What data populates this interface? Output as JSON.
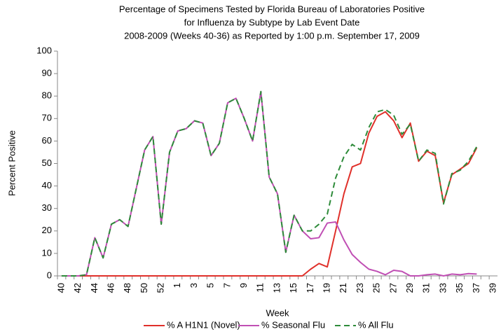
{
  "chart_data": {
    "type": "line",
    "title": [
      "Percentage of Specimens Tested by Florida Bureau of Laboratories Positive",
      "for Influenza by Subtype by Lab Event Date",
      "2008-2009 (Weeks 40-36) as Reported by 1:00 p.m. September 17, 2009"
    ],
    "xlabel": "Week",
    "ylabel": "Percent Positive",
    "categories": [
      "40",
      null,
      "42",
      null,
      "44",
      null,
      "46",
      null,
      "48",
      null,
      "50",
      null,
      "52",
      null,
      "1",
      null,
      "3",
      null,
      "5",
      null,
      "7",
      null,
      "9",
      null,
      "11",
      null,
      "13",
      null,
      "15",
      null,
      "17",
      null,
      "19",
      null,
      "21",
      null,
      "23",
      null,
      "25",
      null,
      "27",
      null,
      "29",
      null,
      "31",
      null,
      "33",
      null,
      "35",
      null,
      "37",
      null,
      "39"
    ],
    "ylim": [
      0,
      100
    ],
    "yticks": [
      0,
      10,
      20,
      30,
      40,
      50,
      60,
      70,
      80,
      90,
      100
    ],
    "legend": "bottom",
    "series": [
      {
        "name": "% A H1N1 (Novel)",
        "color": "#e0302a",
        "line_style": "solid",
        "values": [
          0,
          0,
          0,
          0,
          0,
          0,
          0,
          0,
          0,
          0,
          0,
          0,
          0,
          0,
          0,
          0,
          0,
          0,
          0,
          0,
          0,
          0,
          0,
          0,
          0,
          0,
          0,
          0,
          0,
          0,
          3,
          5.5,
          4,
          20,
          36.5,
          48.5,
          50,
          63.5,
          71,
          73,
          69,
          61.5,
          68,
          51,
          55.5,
          53.5,
          32.5,
          45,
          47.5,
          50,
          57,
          null,
          null
        ]
      },
      {
        "name": "% Seasonal Flu",
        "color": "#c04fb4",
        "line_style": "solid",
        "values": [
          0,
          0,
          0,
          0.5,
          17,
          8,
          23,
          25,
          22,
          39,
          56,
          62,
          23,
          55,
          64.5,
          65.5,
          69,
          68,
          53.5,
          59,
          77,
          79,
          70,
          60,
          82,
          44,
          36.5,
          10.5,
          27,
          20,
          16.5,
          17,
          23.5,
          24,
          16,
          9.5,
          6,
          3,
          2,
          0.5,
          2.5,
          2,
          0,
          0,
          0.5,
          0.8,
          0,
          0.8,
          0.5,
          1,
          0.8,
          null,
          null
        ]
      },
      {
        "name": "% All Flu",
        "color": "#2e8b3a",
        "line_style": "dashed",
        "values": [
          0,
          0,
          0,
          0.5,
          17,
          8,
          23,
          25,
          22,
          39,
          56,
          62,
          23,
          55,
          64.5,
          65.5,
          69,
          68,
          53.5,
          59,
          77,
          79,
          70,
          60,
          82,
          44,
          36.5,
          10.5,
          27,
          20,
          20,
          23,
          27.5,
          43.5,
          53,
          58.5,
          56,
          66,
          73,
          74,
          71.5,
          63,
          67.5,
          51,
          56,
          54.5,
          32,
          45.5,
          47,
          51,
          57.5,
          null,
          null
        ]
      }
    ]
  }
}
